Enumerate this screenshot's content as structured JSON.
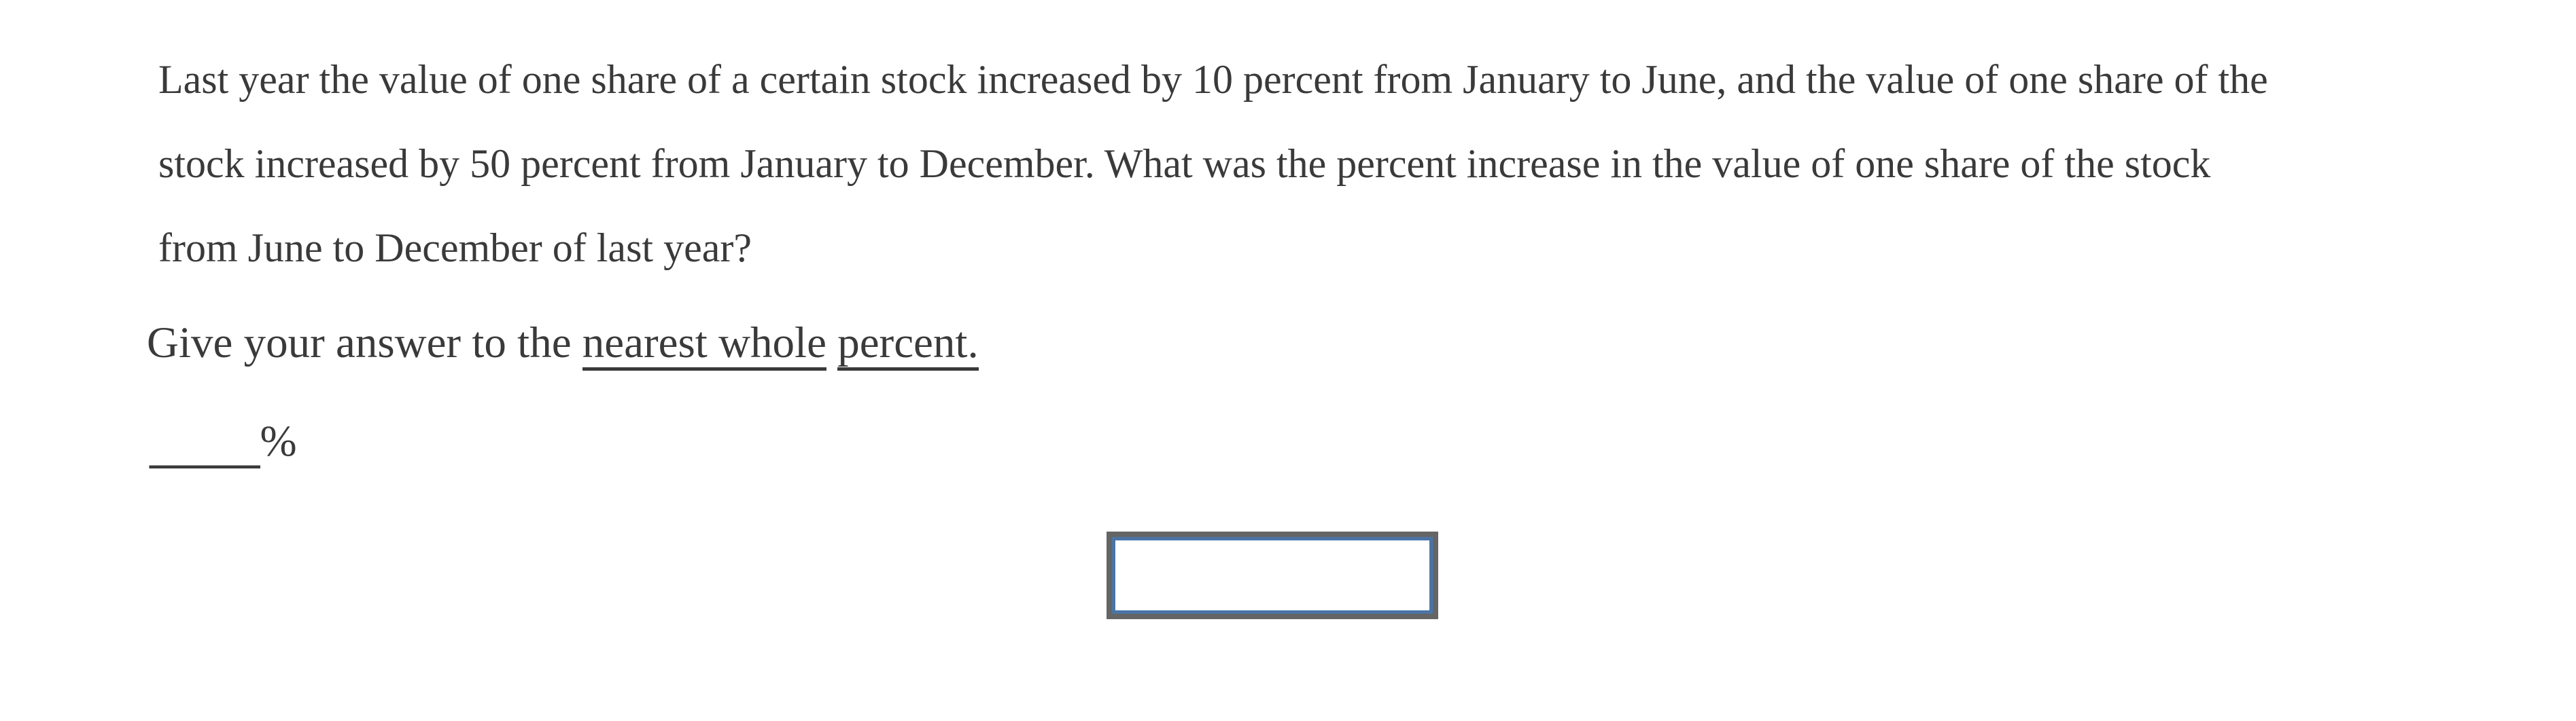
{
  "colors": {
    "text": "#3a3a3a",
    "input_border_gray": "#656565",
    "input_focus_blue": "#4a74a8",
    "background": "#ffffff"
  },
  "question": {
    "lines": [
      "Last year the value of one share of a certain stock increased by 10 percent from January to June, and the value of one share of the",
      "stock increased by 50 percent from January to December. What was the percent increase in the value of one share of the stock",
      "from June to December of last year?"
    ]
  },
  "instruction": {
    "prefix": "Give your answer to the ",
    "underlined_first": "nearest whole",
    "underlined_second": "percent."
  },
  "answer": {
    "blank": "_____",
    "percent_sign": "%"
  },
  "input": {
    "value": ""
  }
}
